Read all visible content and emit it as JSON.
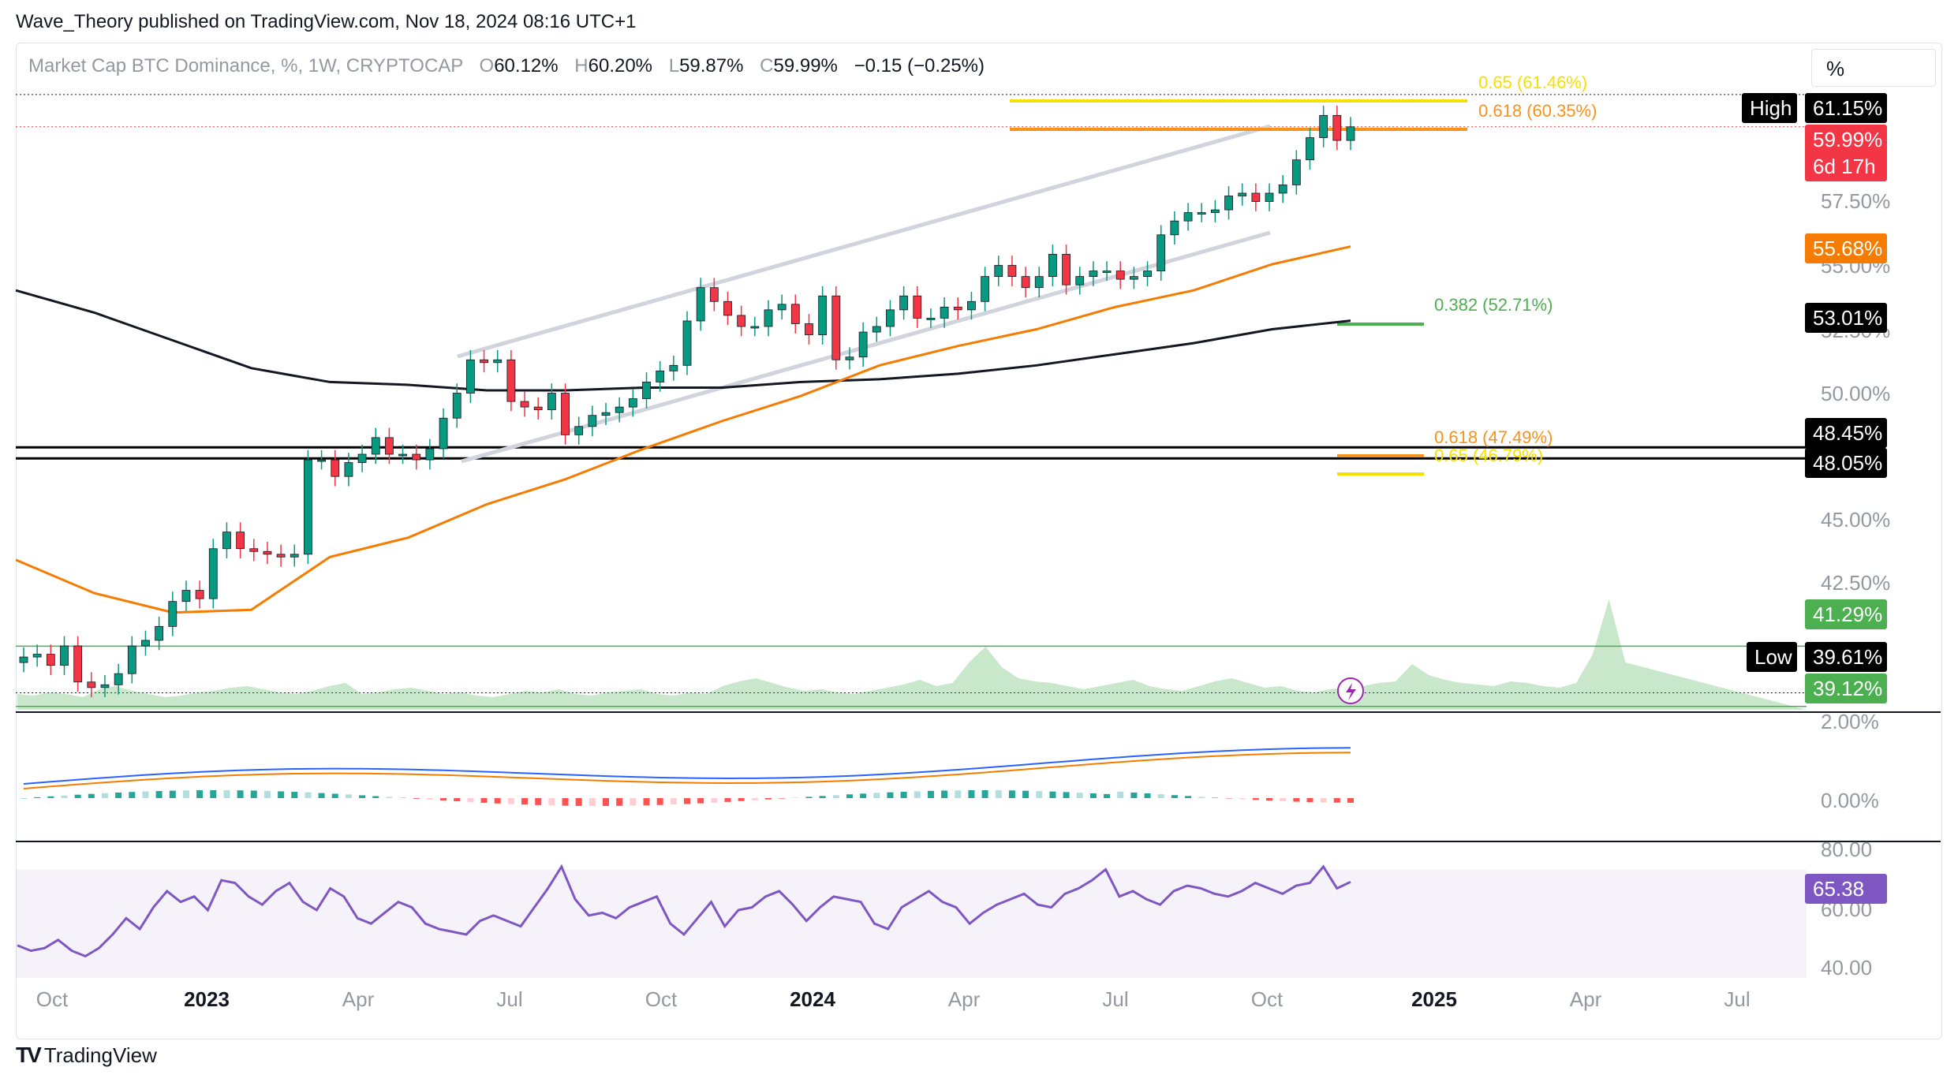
{
  "publisher": "Wave_Theory published on TradingView.com, Nov 18, 2024 08:16 UTC+1",
  "legend": {
    "symbol": "Market Cap BTC Dominance, %, 1W, CRYPTOCAP",
    "o_label": "O",
    "o": "60.12%",
    "h_label": "H",
    "h": "60.20%",
    "l_label": "L",
    "l": "59.87%",
    "c_label": "C",
    "c": "59.99%",
    "change": "−0.15 (−0.25%)"
  },
  "scale_button": "%",
  "footer": {
    "logo": "TV",
    "brand": "TradingView"
  },
  "price_axis": [
    "57.50%",
    "55.00%",
    "52.50%",
    "50.00%",
    "45.00%",
    "42.50%"
  ],
  "macd_axis": [
    "2.00%",
    "0.00%"
  ],
  "rsi_axis": [
    "80.00",
    "60.00",
    "40.00"
  ],
  "time_axis": [
    {
      "label": "Oct",
      "bold": false
    },
    {
      "label": "2023",
      "bold": true
    },
    {
      "label": "Apr",
      "bold": false
    },
    {
      "label": "Jul",
      "bold": false
    },
    {
      "label": "Oct",
      "bold": false
    },
    {
      "label": "2024",
      "bold": true
    },
    {
      "label": "Apr",
      "bold": false
    },
    {
      "label": "Jul",
      "bold": false
    },
    {
      "label": "Oct",
      "bold": false
    },
    {
      "label": "2025",
      "bold": true
    },
    {
      "label": "Apr",
      "bold": false
    },
    {
      "label": "Jul",
      "bold": false
    }
  ],
  "tags": {
    "high_label": "High",
    "high_value": "61.15%",
    "last_value": "59.99%",
    "countdown": "6d 17h",
    "ma50_value": "55.68%",
    "ma200_value": "53.01%",
    "level1": "48.45%",
    "level2": "48.05%",
    "green_level": "41.29%",
    "low_label": "Low",
    "low_value": "39.61%",
    "green_level2": "39.12%",
    "rsi_value": "65.38"
  },
  "fib_labels": {
    "top_065": "0.65 (61.46%)",
    "top_0618": "0.618 (60.35%)",
    "mid_0382": "0.382 (52.71%)",
    "low_0618": "0.618 (47.49%)",
    "low_065": "0.65 (46.79%)"
  },
  "colors": {
    "up": "#089981",
    "down": "#f23645",
    "ma_orange": "#f57c00",
    "ma_black": "#131722",
    "channel": "#d1d4dc",
    "fib_yellow": "#f5e000",
    "fib_orange": "#f7931a",
    "fib_green": "#4caf50",
    "rsi": "#7e57c2",
    "macd_blue": "#2962ff"
  },
  "chart_data": {
    "type": "candlestick",
    "title": "Market Cap BTC Dominance, %, 1W, CRYPTOCAP",
    "timeframe": "1W",
    "x_range": [
      "2022-10",
      "2025-07"
    ],
    "y_range": [
      39.0,
      62.0
    ],
    "last": {
      "open": 60.12,
      "high": 60.2,
      "low": 59.87,
      "close": 59.99
    },
    "closes": [
      40.9,
      41.0,
      40.6,
      41.3,
      40.0,
      39.8,
      39.9,
      40.3,
      41.3,
      41.5,
      42.0,
      42.9,
      43.3,
      43.0,
      44.8,
      45.4,
      44.8,
      44.7,
      44.6,
      44.5,
      44.6,
      48.0,
      48.0,
      47.4,
      47.9,
      48.2,
      48.8,
      48.2,
      48.2,
      48.0,
      48.4,
      49.5,
      50.4,
      51.6,
      51.5,
      51.6,
      50.1,
      49.9,
      49.8,
      50.4,
      48.9,
      49.2,
      49.6,
      49.7,
      49.9,
      50.2,
      50.8,
      51.2,
      51.4,
      53.0,
      54.2,
      53.7,
      53.2,
      52.8,
      52.8,
      53.4,
      53.6,
      52.9,
      52.5,
      53.9,
      51.6,
      51.7,
      52.6,
      52.8,
      53.4,
      53.9,
      53.1,
      53.1,
      53.5,
      53.4,
      53.7,
      54.6,
      55.0,
      54.6,
      54.2,
      54.6,
      55.4,
      54.3,
      54.6,
      54.8,
      54.8,
      54.5,
      54.6,
      54.8,
      56.1,
      56.6,
      56.9,
      56.9,
      57.0,
      57.5,
      57.6,
      57.3,
      57.6,
      57.9,
      58.8,
      59.6,
      60.4,
      59.5,
      59.99
    ],
    "ma50": [
      44.4,
      43.2,
      42.5,
      42.6,
      44.5,
      45.2,
      46.4,
      47.3,
      48.4,
      49.4,
      50.3,
      51.4,
      52.1,
      52.7,
      53.5,
      54.1,
      55.04,
      55.68
    ],
    "ma200": [
      54.1,
      53.3,
      52.3,
      51.3,
      50.8,
      50.7,
      50.5,
      50.5,
      50.6,
      50.6,
      50.8,
      50.9,
      51.1,
      51.4,
      51.8,
      52.2,
      52.7,
      53.01
    ],
    "horizontal_levels": [
      48.45,
      48.05,
      41.29,
      39.12
    ],
    "session_high": 61.15,
    "session_low": 39.61,
    "fibonacci": [
      {
        "ratio": 0.65,
        "value": 61.46
      },
      {
        "ratio": 0.618,
        "value": 60.35
      },
      {
        "ratio": 0.382,
        "value": 52.71
      },
      {
        "ratio": 0.618,
        "value": 47.49
      },
      {
        "ratio": 0.65,
        "value": 46.79
      }
    ],
    "macd": {
      "macd_last": 1.2,
      "signal_last": 1.1,
      "ylim": [
        -0.5,
        2.0
      ]
    },
    "rsi": {
      "last": 65.38,
      "ylim": [
        30,
        80
      ],
      "values": [
        42,
        40,
        41,
        44,
        40,
        38,
        41,
        46,
        52,
        48,
        56,
        62,
        58,
        60,
        55,
        66,
        65,
        60,
        57,
        62,
        65,
        58,
        55,
        63,
        60,
        52,
        50,
        54,
        58,
        56,
        50,
        48,
        47,
        46,
        51,
        53,
        51,
        49,
        56,
        63,
        71,
        59,
        53,
        54,
        52,
        56,
        58,
        60,
        50,
        46,
        52,
        58,
        49,
        55,
        56,
        60,
        62,
        57,
        51,
        56,
        60,
        59,
        58,
        50,
        48,
        56,
        59,
        62,
        58,
        56,
        50,
        54,
        57,
        59,
        61,
        57,
        56,
        61,
        63,
        66,
        70,
        60,
        62,
        59,
        57,
        62,
        64,
        63,
        61,
        60,
        62,
        65,
        63,
        61,
        64,
        65,
        71,
        63,
        65.38
      ]
    }
  }
}
